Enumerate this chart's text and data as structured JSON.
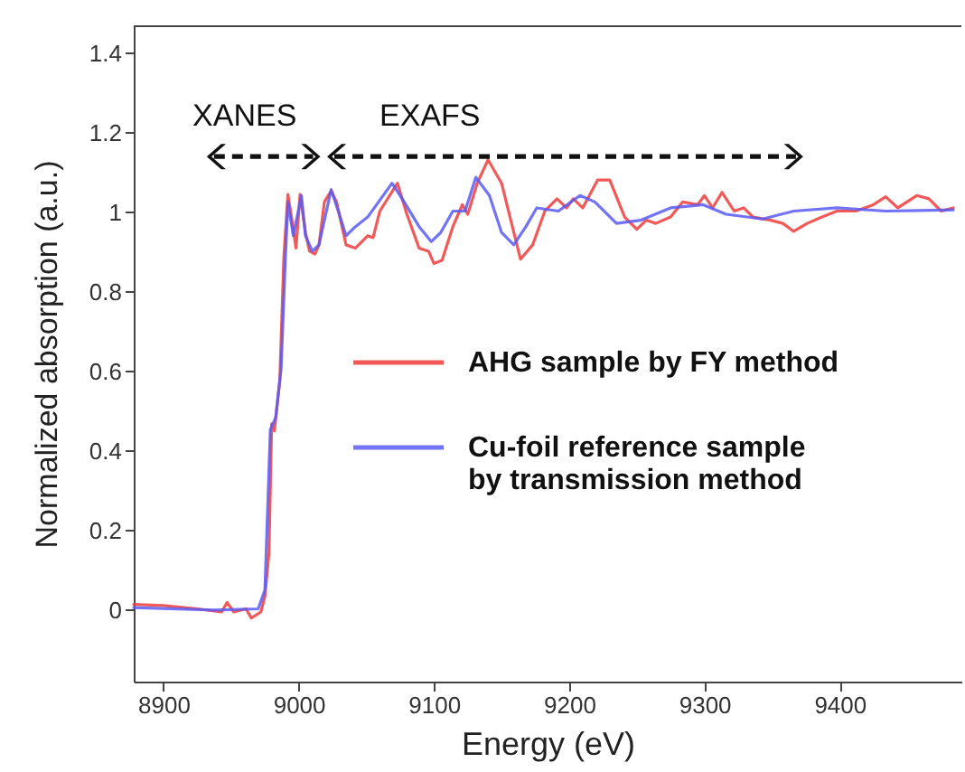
{
  "chart_data": {
    "type": "line",
    "xlabel": "Energy    (eV)",
    "ylabel": "Normalized absorption  (a.u.)",
    "xlim": [
      8878,
      9490
    ],
    "ylim": [
      -0.18,
      1.47
    ],
    "xticks": [
      8900,
      9000,
      9100,
      9200,
      9300,
      9400
    ],
    "yticks": [
      0,
      0.2,
      0.4,
      0.6,
      0.8,
      1,
      1.2,
      1.4
    ],
    "grid": false,
    "legend": "right",
    "line_style": "solid",
    "marker": "none",
    "annotations": [
      "XANES",
      "EXAFS"
    ],
    "series": [
      {
        "name": "AHG sample by FY method",
        "color": "#f03c3c",
        "x": [
          8878,
          8900,
          8925,
          8943,
          8947,
          8952,
          8961,
          8965,
          8972,
          8975,
          8978,
          8980,
          8982,
          8986,
          8989,
          8992,
          8995,
          8998,
          9001,
          9005,
          9008,
          9012,
          9015,
          9019,
          9024,
          9028,
          9035,
          9042,
          9051,
          9055,
          9060,
          9073,
          9080,
          9089,
          9096,
          9100,
          9106,
          9114,
          9121,
          9125,
          9132,
          9140,
          9150,
          9164,
          9173,
          9182,
          9191,
          9198,
          9203,
          9210,
          9221,
          9230,
          9241,
          9250,
          9257,
          9264,
          9275,
          9284,
          9295,
          9300,
          9306,
          9313,
          9322,
          9329,
          9336,
          9349,
          9358,
          9366,
          9376,
          9387,
          9398,
          9412,
          9425,
          9434,
          9443,
          9457,
          9466,
          9475,
          9484
        ],
        "values": [
          0.014,
          0.011,
          0.003,
          -0.005,
          0.019,
          -0.005,
          0.003,
          -0.02,
          -0.005,
          0.034,
          0.143,
          0.468,
          0.45,
          0.577,
          0.887,
          1.045,
          0.98,
          0.91,
          1.045,
          0.949,
          0.902,
          0.895,
          0.918,
          1.026,
          1.054,
          1.026,
          0.918,
          0.91,
          0.941,
          0.936,
          1.003,
          1.073,
          0.995,
          0.91,
          0.902,
          0.871,
          0.879,
          0.964,
          1.019,
          0.995,
          1.073,
          1.132,
          1.073,
          0.882,
          0.918,
          1.003,
          1.034,
          1.011,
          1.034,
          1.011,
          1.081,
          1.081,
          0.988,
          0.957,
          0.98,
          0.972,
          0.988,
          1.026,
          1.019,
          1.042,
          1.011,
          1.05,
          1.003,
          1.011,
          0.988,
          0.98,
          0.972,
          0.952,
          0.972,
          0.988,
          1.003,
          1.003,
          1.019,
          1.039,
          1.011,
          1.042,
          1.034,
          1.003,
          1.011
        ]
      },
      {
        "name": "Cu-foil  reference sample by transmission method",
        "color": "#5b5bf5",
        "x": [
          8878,
          8938,
          8970,
          8975,
          8979,
          8983,
          8987,
          8990,
          8992,
          8996,
          9002,
          9005,
          9010,
          9015,
          9024,
          9030,
          9035,
          9042,
          9051,
          9069,
          9078,
          9089,
          9098,
          9105,
          9114,
          9123,
          9131,
          9141,
          9150,
          9159,
          9168,
          9176,
          9192,
          9208,
          9219,
          9235,
          9253,
          9275,
          9299,
          9316,
          9343,
          9366,
          9398,
          9434,
          9484
        ],
        "values": [
          0.006,
          0,
          0.003,
          0.05,
          0.453,
          0.484,
          0.608,
          0.871,
          1.026,
          0.941,
          1.042,
          0.941,
          0.902,
          0.918,
          1.057,
          0.995,
          0.941,
          0.964,
          0.988,
          1.073,
          1.026,
          0.964,
          0.926,
          0.949,
          1.003,
          1.003,
          1.088,
          1.042,
          0.949,
          0.918,
          0.964,
          1.011,
          1.003,
          1.042,
          1.026,
          0.972,
          0.98,
          1.011,
          1.019,
          0.995,
          0.983,
          1.003,
          1.011,
          1.003,
          1.006
        ]
      }
    ]
  }
}
